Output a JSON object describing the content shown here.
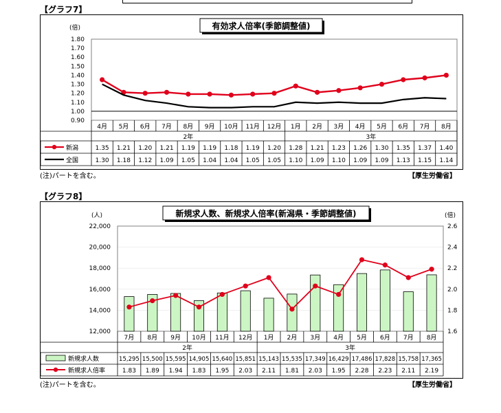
{
  "graph7": {
    "label": "【グラフ7】",
    "note": "(注)パートを含む。",
    "source": "【厚生労働省】",
    "chart_data": {
      "type": "line",
      "title": "有効求人倍率(季節調整値)",
      "yunit": "(倍)",
      "ylim": [
        0.9,
        1.8
      ],
      "yticks": [
        "0.90",
        "1.00",
        "1.10",
        "1.20",
        "1.30",
        "1.40",
        "1.50",
        "1.60",
        "1.70",
        "1.80"
      ],
      "categories": [
        "4月",
        "5月",
        "6月",
        "7月",
        "8月",
        "9月",
        "10月",
        "11月",
        "12月",
        "1月",
        "2月",
        "3月",
        "4月",
        "5月",
        "6月",
        "7月",
        "8月"
      ],
      "year_labels": [
        "2年",
        "3年"
      ],
      "series": [
        {
          "name": "新潟",
          "color": "#e0001b",
          "values": [
            1.35,
            1.21,
            1.2,
            1.21,
            1.19,
            1.19,
            1.18,
            1.19,
            1.2,
            1.28,
            1.21,
            1.23,
            1.26,
            1.3,
            1.35,
            1.37,
            1.4
          ],
          "labels": [
            "1.35",
            "1.21",
            "1.20",
            "1.21",
            "1.19",
            "1.19",
            "1.18",
            "1.19",
            "1.20",
            "1.28",
            "1.21",
            "1.23",
            "1.26",
            "1.30",
            "1.35",
            "1.37",
            "1.40"
          ]
        },
        {
          "name": "全国",
          "color": "#000000",
          "values": [
            1.3,
            1.18,
            1.12,
            1.09,
            1.05,
            1.04,
            1.04,
            1.05,
            1.05,
            1.1,
            1.09,
            1.1,
            1.09,
            1.09,
            1.13,
            1.15,
            1.14
          ],
          "labels": [
            "1.30",
            "1.18",
            "1.12",
            "1.09",
            "1.05",
            "1.04",
            "1.04",
            "1.05",
            "1.05",
            "1.10",
            "1.09",
            "1.10",
            "1.09",
            "1.09",
            "1.13",
            "1.15",
            "1.14"
          ]
        }
      ]
    }
  },
  "graph8": {
    "label": "【グラフ8】",
    "note": "(注)パートを含む。",
    "source": "【厚生労働省】",
    "chart_data": {
      "type": "bar",
      "title": "新規求人数、新規求人倍率(新潟県・季節調整値)",
      "yunit_left": "(人)",
      "yunit_right": "(倍)",
      "ylim_left": [
        12000,
        22000
      ],
      "ylim_right": [
        1.6,
        2.6
      ],
      "yticks_left": [
        "12,000",
        "14,000",
        "16,000",
        "18,000",
        "20,000",
        "22,000"
      ],
      "yticks_right": [
        "1.6",
        "1.8",
        "2.0",
        "2.2",
        "2.4",
        "2.6"
      ],
      "categories": [
        "7月",
        "8月",
        "9月",
        "10月",
        "11月",
        "12月",
        "1月",
        "2月",
        "3月",
        "4月",
        "5月",
        "6月",
        "7月",
        "8月"
      ],
      "year_labels": [
        "2年",
        "3年"
      ],
      "bar_series": {
        "name": "新規求人数",
        "color": "#ccf5c4",
        "values": [
          15295,
          15500,
          15595,
          14905,
          15640,
          15851,
          15143,
          15535,
          17349,
          16429,
          17486,
          17828,
          15758,
          17365
        ],
        "labels": [
          "15,295",
          "15,500",
          "15,595",
          "14,905",
          "15,640",
          "15,851",
          "15,143",
          "15,535",
          "17,349",
          "16,429",
          "17,486",
          "17,828",
          "15,758",
          "17,365"
        ]
      },
      "line_series": {
        "name": "新規求人倍率",
        "color": "#e0001b",
        "values": [
          1.83,
          1.89,
          1.94,
          1.83,
          1.95,
          2.03,
          2.11,
          1.81,
          2.03,
          1.95,
          2.28,
          2.23,
          2.11,
          2.19
        ],
        "labels": [
          "1.83",
          "1.89",
          "1.94",
          "1.83",
          "1.95",
          "2.03",
          "2.11",
          "1.81",
          "2.03",
          "1.95",
          "2.28",
          "2.23",
          "2.11",
          "2.19"
        ]
      }
    }
  }
}
